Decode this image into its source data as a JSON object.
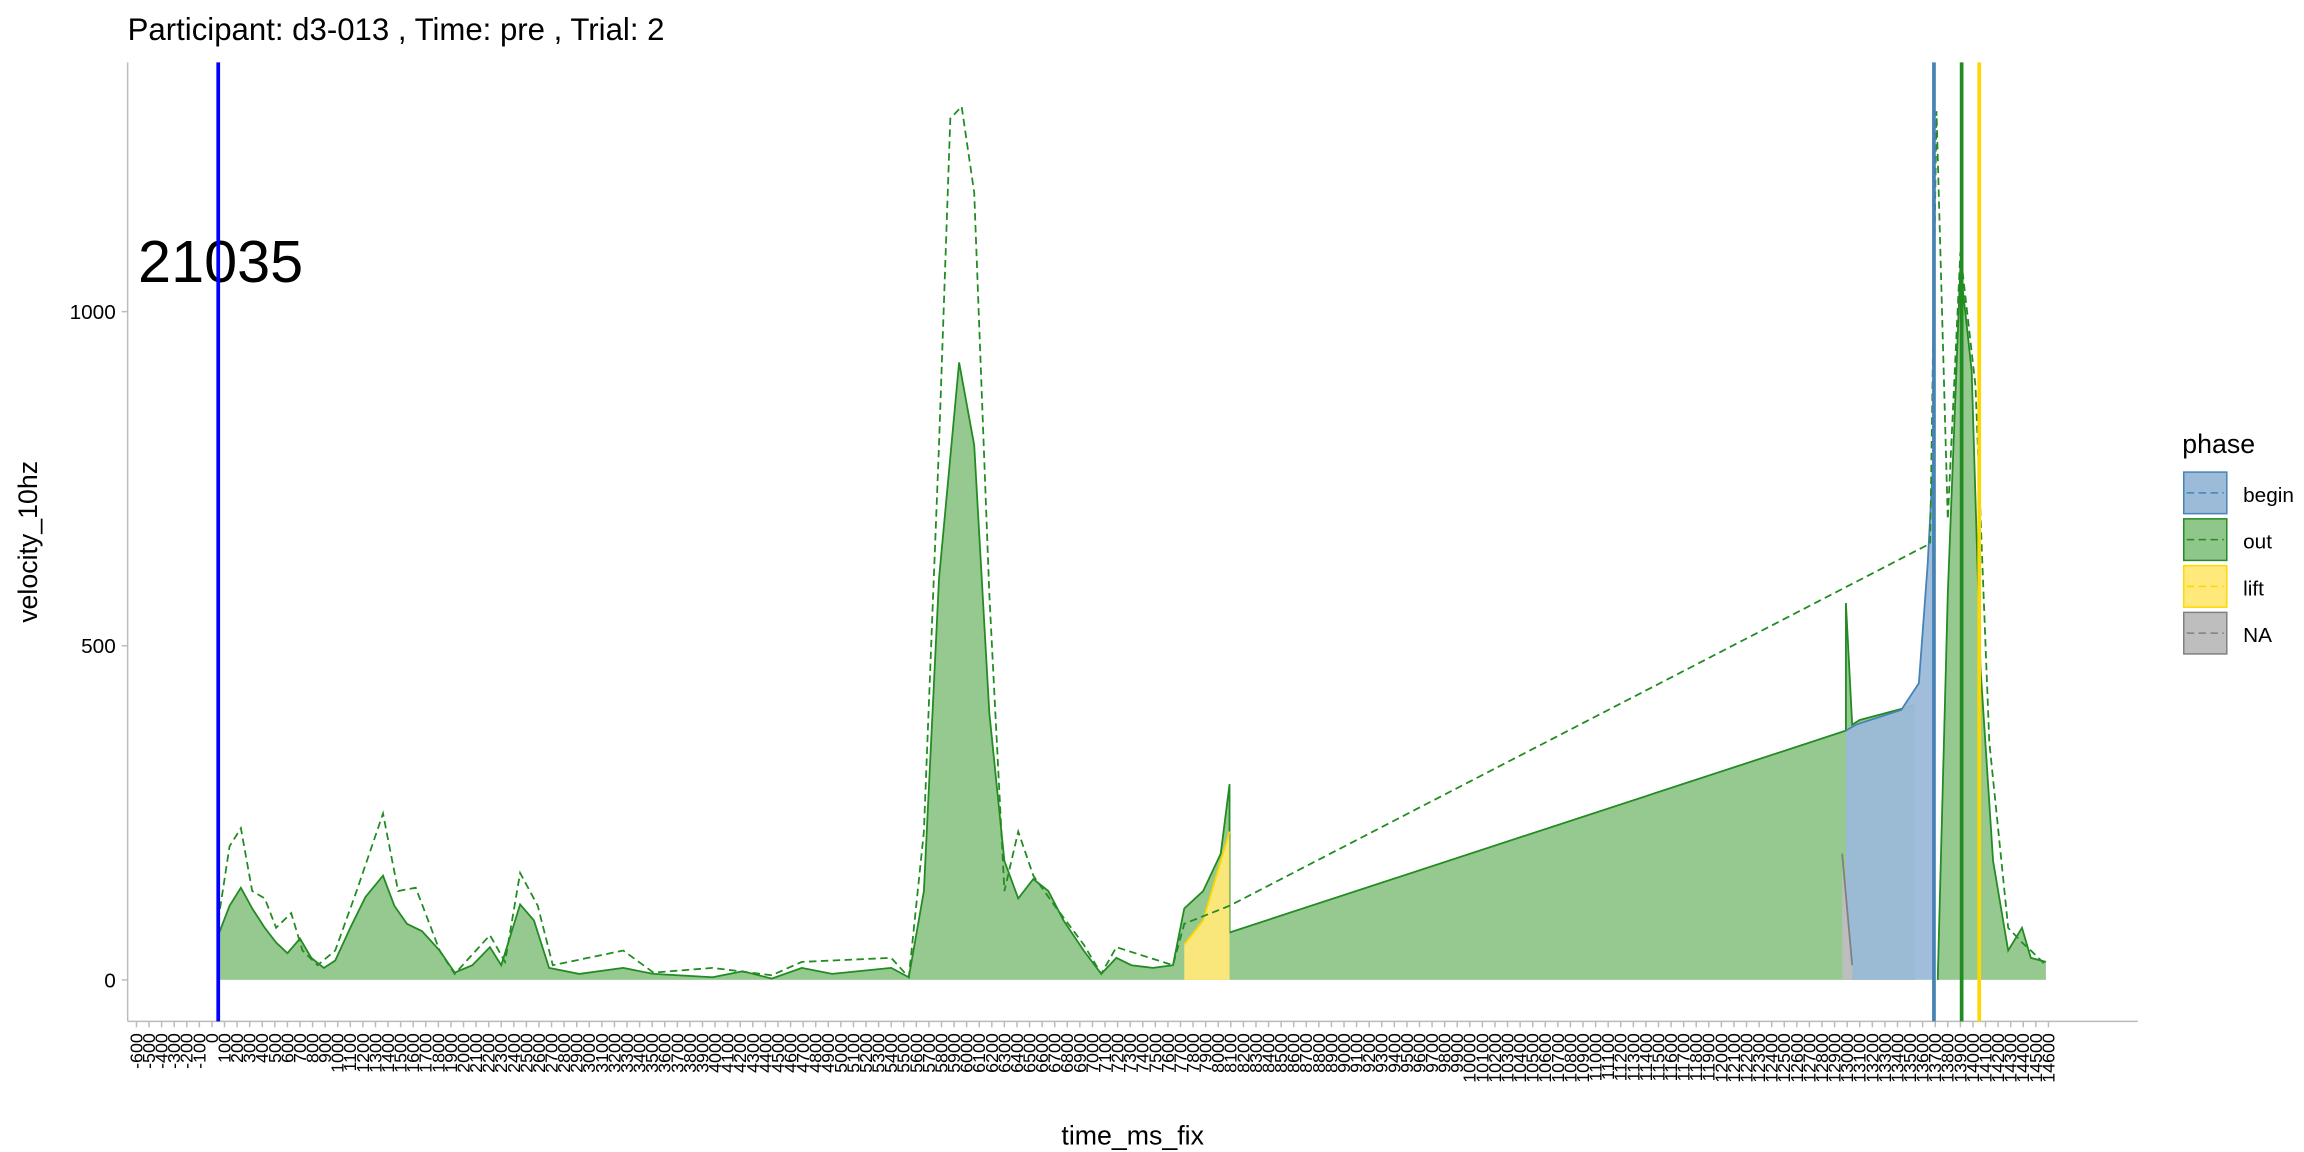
{
  "chart_data": {
    "type": "area",
    "title": "Participant:  d3-013 , Time: pre , Trial:  2",
    "annotation": "21035",
    "xlabel": "time_ms_fix",
    "ylabel": "velocity_10hz",
    "legend_title": "phase",
    "legend_position": "right",
    "grid": false,
    "xlim": [
      -670,
      15310
    ],
    "ylim": [
      -62,
      1373
    ],
    "yticks": [
      0,
      500,
      1000
    ],
    "xticks": [
      -600,
      -500,
      -400,
      -300,
      -200,
      -100,
      0,
      100,
      200,
      300,
      400,
      500,
      600,
      700,
      800,
      900,
      1000,
      1100,
      1200,
      1300,
      1400,
      1500,
      1600,
      1700,
      1800,
      1900,
      2000,
      2100,
      2200,
      2300,
      2400,
      2500,
      2600,
      2700,
      2800,
      2900,
      3000,
      3100,
      3200,
      3300,
      3400,
      3500,
      3600,
      3700,
      3800,
      3900,
      4000,
      4100,
      4200,
      4300,
      4400,
      4500,
      4600,
      4700,
      4800,
      4900,
      5000,
      5100,
      5200,
      5300,
      5400,
      5500,
      5600,
      5700,
      5800,
      5900,
      6000,
      6100,
      6200,
      6300,
      6400,
      6500,
      6600,
      6700,
      6800,
      6900,
      7000,
      7100,
      7200,
      7300,
      7400,
      7500,
      7600,
      7700,
      7800,
      7900,
      8000,
      8100,
      8200,
      8300,
      8400,
      8500,
      8600,
      8700,
      8800,
      8900,
      9000,
      9100,
      9200,
      9300,
      9400,
      9500,
      9600,
      9700,
      9800,
      9900,
      10000,
      10100,
      10200,
      10300,
      10400,
      10500,
      10600,
      10700,
      10800,
      10900,
      11000,
      11100,
      11200,
      11300,
      11400,
      11500,
      11600,
      11700,
      11800,
      11900,
      12000,
      12100,
      12200,
      12300,
      12400,
      12500,
      12600,
      12700,
      12800,
      12900,
      13000,
      13100,
      13200,
      13300,
      13400,
      13500,
      13600,
      13700,
      13800,
      13900,
      14000,
      14100,
      14200,
      14300,
      14400,
      14500,
      14600
    ],
    "series": [
      {
        "name": "begin",
        "color": "#4682b4",
        "fill": "#9bbbd9",
        "x": [
          12990,
          13070,
          13430,
          13570,
          13640,
          13690
        ],
        "values": [
          373,
          382,
          404,
          444,
          622,
          800
        ]
      },
      {
        "name": "out",
        "color": "#228b22",
        "fill": "#8fc68a",
        "x": [
          50,
          140,
          230,
          320,
          420,
          510,
          600,
          700,
          790,
          890,
          980,
          1100,
          1220,
          1360,
          1450,
          1550,
          1670,
          1810,
          1930,
          2070,
          2210,
          2300,
          2450,
          2560,
          2680,
          2920,
          3270,
          3510,
          3980,
          4220,
          4450,
          4690,
          4930,
          5400,
          5540,
          5660,
          5780,
          5940,
          6060,
          6180,
          6300,
          6410,
          6530,
          6650,
          6770,
          6930,
          7070,
          7190,
          7310,
          7480,
          7640,
          7730,
          7880,
          8020,
          8090,
          8090,
          12990,
          12990,
          13040,
          13100,
          13540,
          null,
          13720,
          13800,
          13900,
          13990,
          14060,
          14160,
          14280,
          14390,
          14460,
          14580
        ],
        "values": [
          67,
          111,
          138,
          107,
          78,
          56,
          40,
          62,
          33,
          18,
          29,
          78,
          124,
          156,
          111,
          84,
          73,
          44,
          11,
          22,
          49,
          22,
          113,
          89,
          18,
          9,
          18,
          9,
          4,
          13,
          2,
          18,
          9,
          18,
          4,
          133,
          600,
          924,
          800,
          400,
          178,
          122,
          151,
          133,
          89,
          44,
          9,
          33,
          22,
          18,
          22,
          107,
          133,
          189,
          293,
          71,
          373,
          564,
          382,
          389,
          411,
          null,
          0,
          578,
          1067,
          911,
          467,
          178,
          44,
          78,
          33,
          27
        ]
      },
      {
        "name": "lift",
        "color": "#ffd700",
        "fill": "#ffe97a",
        "x": [
          7730,
          7880,
          8020,
          8090
        ],
        "values": [
          53,
          89,
          178,
          222
        ]
      },
      {
        "name": "NA",
        "color": "#808080",
        "fill": "#bebebe",
        "x": [
          12960,
          13040
        ],
        "values": [
          189,
          22
        ]
      }
    ],
    "dashed": {
      "color": "#228b22",
      "x": [
        50,
        140,
        230,
        320,
        420,
        510,
        630,
        720,
        840,
        980,
        1150,
        1360,
        1480,
        1620,
        1810,
        1930,
        2210,
        2330,
        2450,
        2590,
        2710,
        3270,
        3510,
        3980,
        4450,
        4690,
        5400,
        5540,
        5660,
        5780,
        5870,
        5960,
        6060,
        6180,
        6300,
        6410,
        6530,
        6700,
        6930,
        7070,
        7190,
        7640,
        7730,
        8090,
        13660,
        13710,
        13800,
        13900,
        14020,
        14130,
        14280,
        14390,
        14460,
        14580
      ],
      "values": [
        89,
        200,
        227,
        133,
        122,
        78,
        100,
        44,
        22,
        44,
        133,
        249,
        133,
        138,
        44,
        9,
        67,
        27,
        160,
        111,
        22,
        44,
        11,
        18,
        7,
        27,
        33,
        4,
        222,
        800,
        1289,
        1307,
        1178,
        578,
        133,
        222,
        156,
        111,
        53,
        9,
        49,
        22,
        84,
        111,
        653,
        1300,
        689,
        1089,
        889,
        356,
        78,
        56,
        44,
        22
      ]
    },
    "vlines": [
      {
        "x": 50,
        "color": "#0000ff"
      },
      {
        "x": 13690,
        "color": "#4682b4"
      },
      {
        "x": 13910,
        "color": "#228b22"
      },
      {
        "x": 14050,
        "color": "#ffd700"
      }
    ]
  }
}
